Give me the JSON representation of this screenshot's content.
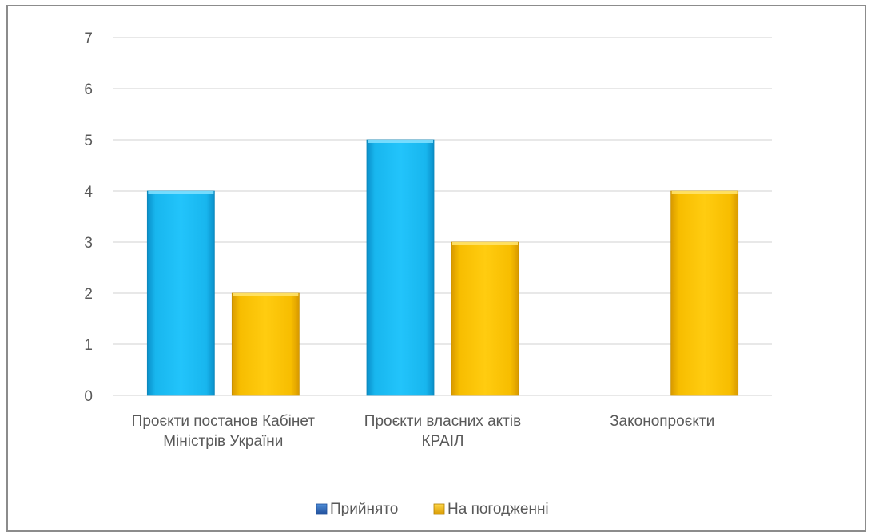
{
  "chart_data": {
    "type": "bar",
    "title": "",
    "xlabel": "",
    "ylabel": "",
    "ylim": [
      0,
      7
    ],
    "yticks": [
      0,
      1,
      2,
      3,
      4,
      5,
      6,
      7
    ],
    "grid": true,
    "legend_position": "bottom",
    "categories": [
      [
        "Проєкти постанов Кабінет",
        "Міністрів України"
      ],
      [
        "Проєкти власних актів",
        "КРАІЛ"
      ],
      [
        "Законопроєкти"
      ]
    ],
    "series": [
      {
        "name": "Прийнято",
        "values": [
          4,
          5,
          null
        ],
        "color": "#00B0F0"
      },
      {
        "name": "На погодженні",
        "values": [
          2,
          3,
          4
        ],
        "color": "#FFC000"
      }
    ]
  }
}
